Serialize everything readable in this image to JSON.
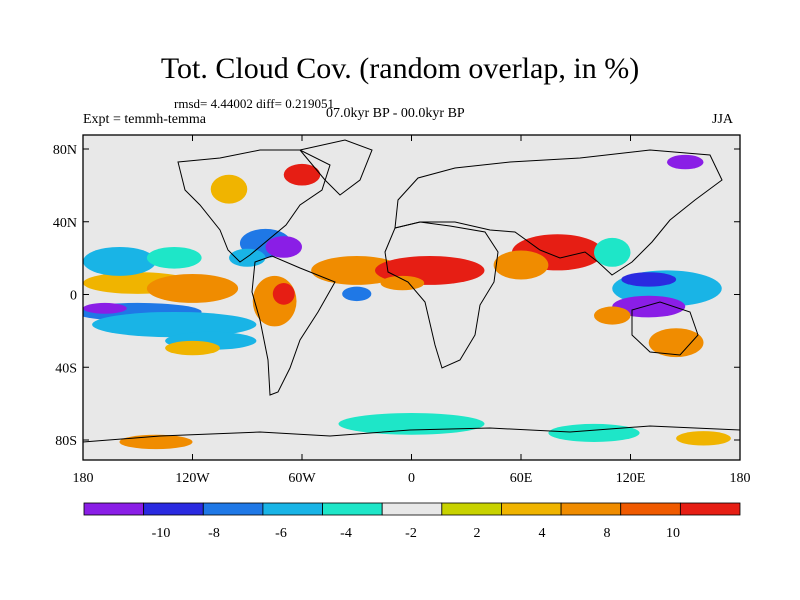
{
  "title": "Tot. Cloud Cov. (random overlap, in %)",
  "stats": "rmsd= 4.44002 diff= 0.219051",
  "experiment": "Expt = temmh-temma",
  "period": "07.0kyr BP - 00.0kyr BP",
  "season": "JJA",
  "x_ticks": [
    "180",
    "120W",
    "60W",
    "0",
    "60E",
    "120E",
    "180"
  ],
  "y_ticks": [
    "80N",
    "40N",
    "0",
    "40S",
    "80S"
  ],
  "colorbar": {
    "colors": [
      "#8a1ee6",
      "#2a2ae0",
      "#1f78e6",
      "#19b4e6",
      "#1ee6c8",
      "#e8e8e8",
      "#c8d200",
      "#f0b400",
      "#f08c00",
      "#f05a00",
      "#e61e14"
    ],
    "labels": [
      "-10",
      "-8",
      "-6",
      "-4",
      "-2",
      "2",
      "4",
      "8",
      "10"
    ]
  },
  "map_data": {
    "lon_range": [
      -180,
      180
    ],
    "lat_range": [
      -90,
      90
    ],
    "levels": [
      -10,
      -8,
      -6,
      -4,
      -2,
      2,
      4,
      8,
      10
    ],
    "background_color": "#e8e8e8",
    "anomalies": [
      {
        "lon": -150,
        "lat": -8,
        "rlon": 35,
        "rlat": 5,
        "color": "#1f78e6"
      },
      {
        "lon": -168,
        "lat": -6,
        "rlon": 12,
        "rlat": 3,
        "color": "#8a1ee6"
      },
      {
        "lon": -130,
        "lat": -15,
        "rlon": 45,
        "rlat": 7,
        "color": "#19b4e6"
      },
      {
        "lon": -110,
        "lat": -24,
        "rlon": 25,
        "rlat": 5,
        "color": "#19b4e6"
      },
      {
        "lon": -150,
        "lat": 8,
        "rlon": 30,
        "rlat": 6,
        "color": "#f0b400"
      },
      {
        "lon": -120,
        "lat": 5,
        "rlon": 25,
        "rlat": 8,
        "color": "#f08c00"
      },
      {
        "lon": -160,
        "lat": 20,
        "rlon": 20,
        "rlat": 8,
        "color": "#19b4e6"
      },
      {
        "lon": -130,
        "lat": 22,
        "rlon": 15,
        "rlat": 6,
        "color": "#1ee6c8"
      },
      {
        "lon": -120,
        "lat": -28,
        "rlon": 15,
        "rlat": 4,
        "color": "#f0b400"
      },
      {
        "lon": -80,
        "lat": 30,
        "rlon": 14,
        "rlat": 8,
        "color": "#1f78e6"
      },
      {
        "lon": -70,
        "lat": 28,
        "rlon": 10,
        "rlat": 6,
        "color": "#8a1ee6"
      },
      {
        "lon": -90,
        "lat": 22,
        "rlon": 10,
        "rlat": 5,
        "color": "#19b4e6"
      },
      {
        "lon": -75,
        "lat": -2,
        "rlon": 12,
        "rlat": 14,
        "color": "#f08c00"
      },
      {
        "lon": -70,
        "lat": 2,
        "rlon": 6,
        "rlat": 6,
        "color": "#e61e14"
      },
      {
        "lon": -30,
        "lat": 15,
        "rlon": 25,
        "rlat": 8,
        "color": "#f08c00"
      },
      {
        "lon": 10,
        "lat": 15,
        "rlon": 30,
        "rlat": 8,
        "color": "#e61e14"
      },
      {
        "lon": -5,
        "lat": 8,
        "rlon": 12,
        "rlat": 4,
        "color": "#f08c00"
      },
      {
        "lon": -30,
        "lat": 2,
        "rlon": 8,
        "rlat": 4,
        "color": "#1f78e6"
      },
      {
        "lon": 80,
        "lat": 25,
        "rlon": 25,
        "rlat": 10,
        "color": "#e61e14"
      },
      {
        "lon": 60,
        "lat": 18,
        "rlon": 15,
        "rlat": 8,
        "color": "#f08c00"
      },
      {
        "lon": 110,
        "lat": 25,
        "rlon": 10,
        "rlat": 8,
        "color": "#1ee6c8"
      },
      {
        "lon": 140,
        "lat": 5,
        "rlon": 30,
        "rlat": 10,
        "color": "#19b4e6"
      },
      {
        "lon": 130,
        "lat": -5,
        "rlon": 20,
        "rlat": 6,
        "color": "#8a1ee6"
      },
      {
        "lon": 130,
        "lat": 10,
        "rlon": 15,
        "rlat": 4,
        "color": "#2a2ae0"
      },
      {
        "lon": 110,
        "lat": -10,
        "rlon": 10,
        "rlat": 5,
        "color": "#f08c00"
      },
      {
        "lon": 145,
        "lat": -25,
        "rlon": 15,
        "rlat": 8,
        "color": "#f08c00"
      },
      {
        "lon": -60,
        "lat": 68,
        "rlon": 10,
        "rlat": 6,
        "color": "#e61e14"
      },
      {
        "lon": -100,
        "lat": 60,
        "rlon": 10,
        "rlat": 8,
        "color": "#f0b400"
      },
      {
        "lon": 150,
        "lat": 75,
        "rlon": 10,
        "rlat": 4,
        "color": "#8a1ee6"
      },
      {
        "lon": 0,
        "lat": -70,
        "rlon": 40,
        "rlat": 6,
        "color": "#1ee6c8"
      },
      {
        "lon": 100,
        "lat": -75,
        "rlon": 25,
        "rlat": 5,
        "color": "#1ee6c8"
      },
      {
        "lon": 160,
        "lat": -78,
        "rlon": 15,
        "rlat": 4,
        "color": "#f0b400"
      },
      {
        "lon": -140,
        "lat": -80,
        "rlon": 20,
        "rlat": 4,
        "color": "#f08c00"
      }
    ]
  }
}
